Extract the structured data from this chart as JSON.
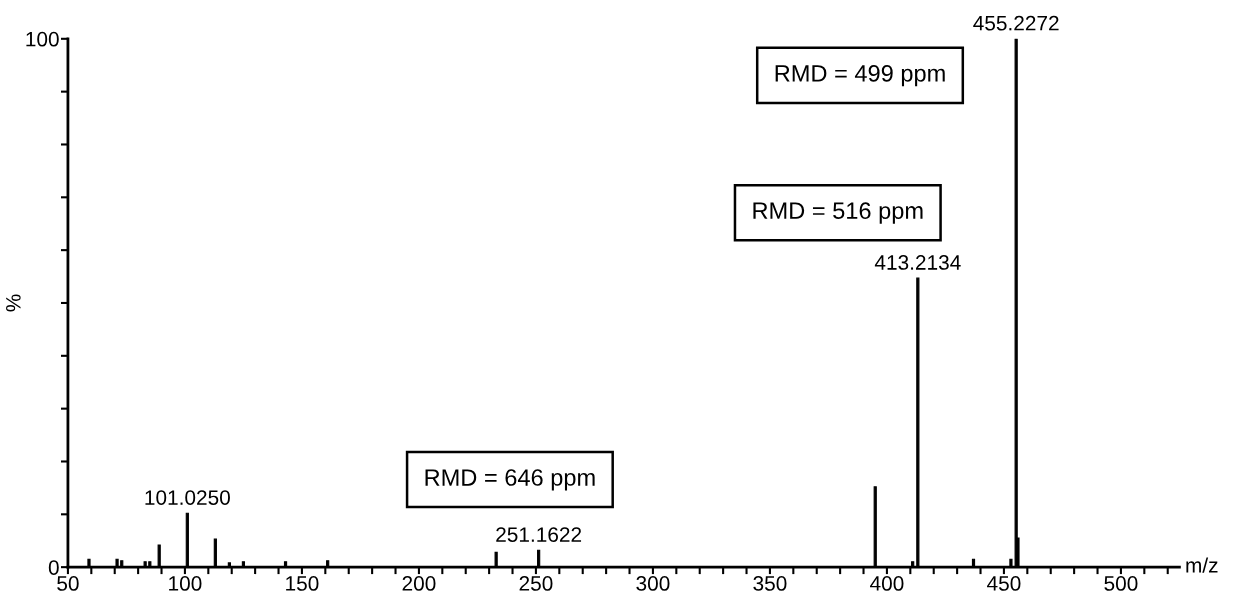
{
  "chart_data": {
    "type": "bar",
    "xlabel": "m/z",
    "ylabel": "%",
    "x": [
      59,
      71,
      73,
      83,
      85,
      89,
      101.025,
      113,
      119,
      125,
      143,
      161,
      233,
      251.1622,
      395,
      411,
      413.2134,
      437,
      453,
      455.2272,
      456
    ],
    "values": [
      1.5,
      1.5,
      1.2,
      1,
      1,
      4.2,
      10.2,
      5.3,
      0.8,
      1,
      1,
      1.2,
      2.8,
      3.2,
      15.2,
      1,
      54.7,
      1.5,
      1.5,
      100,
      5.5
    ],
    "color": "#000000",
    "xlim": [
      50,
      525
    ],
    "ylim": [
      0,
      100
    ],
    "xticks": [
      50,
      {
        "value": 60,
        "label": null
      },
      {
        "value": 70,
        "label": null
      },
      {
        "value": 80,
        "label": null
      },
      {
        "value": 90,
        "label": null
      },
      100,
      {
        "value": 110,
        "label": null
      },
      {
        "value": 120,
        "label": null
      },
      {
        "value": 130,
        "label": null
      },
      {
        "value": 140,
        "label": null
      },
      150,
      {
        "value": 160,
        "label": null
      },
      {
        "value": 170,
        "label": null
      },
      {
        "value": 180,
        "label": null
      },
      {
        "value": 190,
        "label": null
      },
      200,
      {
        "value": 210,
        "label": null
      },
      {
        "value": 220,
        "label": null
      },
      {
        "value": 230,
        "label": null
      },
      {
        "value": 240,
        "label": null
      },
      250,
      {
        "value": 260,
        "label": null
      },
      {
        "value": 270,
        "label": null
      },
      {
        "value": 280,
        "label": null
      },
      {
        "value": 290,
        "label": null
      },
      300,
      {
        "value": 310,
        "label": null
      },
      {
        "value": 320,
        "label": null
      },
      {
        "value": 330,
        "label": null
      },
      {
        "value": 340,
        "label": null
      },
      350,
      {
        "value": 360,
        "label": null
      },
      {
        "value": 370,
        "label": null
      },
      {
        "value": 380,
        "label": null
      },
      {
        "value": 390,
        "label": null
      },
      400,
      {
        "value": 410,
        "label": null
      },
      {
        "value": 420,
        "label": null
      },
      {
        "value": 430,
        "label": null
      },
      {
        "value": 440,
        "label": null
      },
      450,
      {
        "value": 460,
        "label": null
      },
      {
        "value": 470,
        "label": null
      },
      {
        "value": 480,
        "label": null
      },
      {
        "value": 490,
        "label": null
      },
      500,
      {
        "value": 510,
        "label": null
      },
      {
        "value": 520,
        "label": null
      }
    ],
    "yticks": [
      0,
      {
        "value": 10,
        "label": null
      },
      {
        "value": 20,
        "label": null
      },
      {
        "value": 30,
        "label": null
      },
      {
        "value": 40,
        "label": null
      },
      {
        "value": 50,
        "label": null
      },
      {
        "value": 60,
        "label": null
      },
      {
        "value": 70,
        "label": null
      },
      {
        "value": 80,
        "label": null
      },
      {
        "value": 90,
        "label": null
      },
      100
    ],
    "annotations": [
      {
        "text": "101.0250",
        "x": 101.025,
        "y": 10.2
      },
      {
        "text": "251.1622",
        "x": 251.1622,
        "y": 3.2
      },
      {
        "text": "413.2134",
        "x": 413.2134,
        "y": 54.7
      },
      {
        "text": "455.2272",
        "x": 455.2272,
        "y": 100
      },
      "RMD = 499 ppm",
      "RMD = 516 ppm",
      "RMD = 646 ppm"
    ]
  }
}
